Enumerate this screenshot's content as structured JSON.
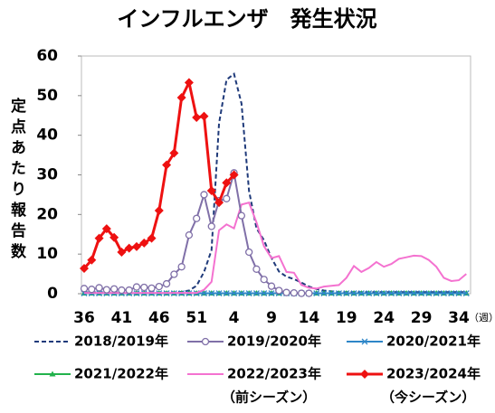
{
  "chart_data": {
    "type": "line",
    "title": "インフルエンザ　発生状況",
    "y_label": "定点あたり報告数",
    "x_label": "（週）",
    "categories": [
      "36",
      null,
      null,
      null,
      null,
      "41",
      null,
      null,
      null,
      null,
      "46",
      null,
      null,
      null,
      null,
      "51",
      null,
      null,
      null,
      null,
      "4",
      null,
      null,
      null,
      null,
      "9",
      null,
      null,
      null,
      null,
      "14",
      null,
      null,
      null,
      null,
      "19",
      null,
      null,
      null,
      null,
      "24",
      null,
      null,
      null,
      null,
      "29",
      null,
      null,
      null,
      null,
      "34",
      null
    ],
    "ylim": [
      0,
      60
    ],
    "yticks": [
      0,
      10,
      20,
      30,
      40,
      50,
      60
    ],
    "grid": false,
    "series": [
      {
        "name": "2018/2019年",
        "color": "#1f3a7a",
        "dash": true,
        "marker": null,
        "values": [
          0.3,
          0.3,
          0.3,
          0.3,
          0.3,
          0.3,
          0.3,
          0.3,
          0.3,
          0.3,
          0.3,
          0.3,
          0.3,
          0.5,
          0.8,
          2,
          5.5,
          11,
          43,
          54,
          55.5,
          48,
          26,
          16.5,
          13.5,
          9,
          5.6,
          4.3,
          3.7,
          2.8,
          1.8,
          1.2,
          0.8,
          0.6,
          0.4,
          0.4,
          0.4,
          0.4,
          0.4,
          0.4,
          0.4,
          0.4,
          0.4,
          0.4,
          0.4,
          0.4,
          0.4,
          0.4,
          0.4,
          0.4,
          0.4,
          0.4
        ]
      },
      {
        "name": "2019/2020年",
        "color": "#8070a8",
        "dash": false,
        "marker": "circle",
        "values": [
          1.3,
          1.1,
          1.5,
          1.0,
          1.2,
          0.9,
          0.9,
          1.7,
          1.6,
          1.4,
          1.8,
          2.5,
          4.9,
          6.8,
          14.8,
          19,
          25,
          17,
          23.5,
          24,
          30.5,
          19.7,
          10.5,
          6.2,
          3.6,
          1.9,
          0.8,
          0.3,
          0.2,
          0.1,
          0.1,
          null,
          null,
          null,
          null,
          null,
          null,
          null,
          null,
          null,
          null,
          null,
          null,
          null,
          null,
          null,
          null,
          null,
          null,
          null,
          null,
          null
        ]
      },
      {
        "name": "2020/2021年",
        "color": "#2e86c8",
        "dash": false,
        "marker": "x",
        "values": [
          0.1,
          0.1,
          0.1,
          0.1,
          0.1,
          0.1,
          0.1,
          0.1,
          0.1,
          0.1,
          0.1,
          0.1,
          0.1,
          0.1,
          0.1,
          0.1,
          0.1,
          0.1,
          0.1,
          0.1,
          0.1,
          0.1,
          0.1,
          0.1,
          0.1,
          0.1,
          0.1,
          0.1,
          0.1,
          0.1,
          0.1,
          0.1,
          0.1,
          0.1,
          0.1,
          0.1,
          0.1,
          0.1,
          0.1,
          0.1,
          0.1,
          0.1,
          0.1,
          0.1,
          0.1,
          0.1,
          0.1,
          0.1,
          0.1,
          0.1,
          0.1,
          0.1
        ]
      },
      {
        "name": "2021/2022年",
        "color": "#22b24c",
        "dash": false,
        "marker": "triangle",
        "values": [
          0.1,
          0.1,
          0.1,
          0.1,
          0.1,
          0.1,
          0.1,
          0.1,
          0.1,
          0.1,
          0.1,
          0.1,
          0.1,
          0.1,
          0.1,
          0.1,
          0.1,
          0.1,
          0.1,
          0.1,
          0.1,
          0.1,
          0.1,
          0.1,
          0.1,
          0.1,
          0.1,
          0.1,
          0.1,
          0.1,
          0.1,
          0.1,
          0.1,
          0.1,
          0.1,
          0.1,
          0.1,
          0.1,
          0.1,
          0.1,
          0.1,
          0.1,
          0.1,
          0.1,
          0.1,
          0.1,
          0.1,
          0.1,
          0.1,
          0.1,
          0.1,
          0.1
        ]
      },
      {
        "name": "2022/2023年",
        "note": "（前シーズン）",
        "color": "#f472d0",
        "dash": false,
        "marker": null,
        "values": [
          0.2,
          0.2,
          0.2,
          0.2,
          0.2,
          0.2,
          0.2,
          0.2,
          0.2,
          0.2,
          0.2,
          0.2,
          0.2,
          0.2,
          0.2,
          0.2,
          1,
          3,
          16,
          17.5,
          16.5,
          22.5,
          23,
          18,
          12,
          9,
          9.5,
          5.5,
          5.3,
          2.2,
          1.5,
          1.3,
          1.8,
          2,
          2.2,
          4,
          7,
          5.5,
          6.5,
          8,
          6.8,
          7.5,
          8.8,
          9.2,
          9.6,
          9.5,
          8.5,
          6.8,
          4,
          3.2,
          3.4,
          5
        ]
      },
      {
        "name": "2023/2024年",
        "note": "（今シーズン）",
        "color": "#ee1111",
        "dash": false,
        "marker": "diamond",
        "values": [
          6.4,
          8.5,
          14,
          16.4,
          14.2,
          10.5,
          11.5,
          11.9,
          12.8,
          14,
          21,
          32.5,
          35.5,
          49.5,
          53.3,
          44.5,
          44.8,
          26,
          23,
          28,
          30,
          null,
          null,
          null,
          null,
          null,
          null,
          null,
          null,
          null,
          null,
          null,
          null,
          null,
          null,
          null,
          null,
          null,
          null,
          null,
          null,
          null,
          null,
          null,
          null,
          null,
          null,
          null,
          null,
          null,
          null,
          null
        ]
      }
    ]
  }
}
